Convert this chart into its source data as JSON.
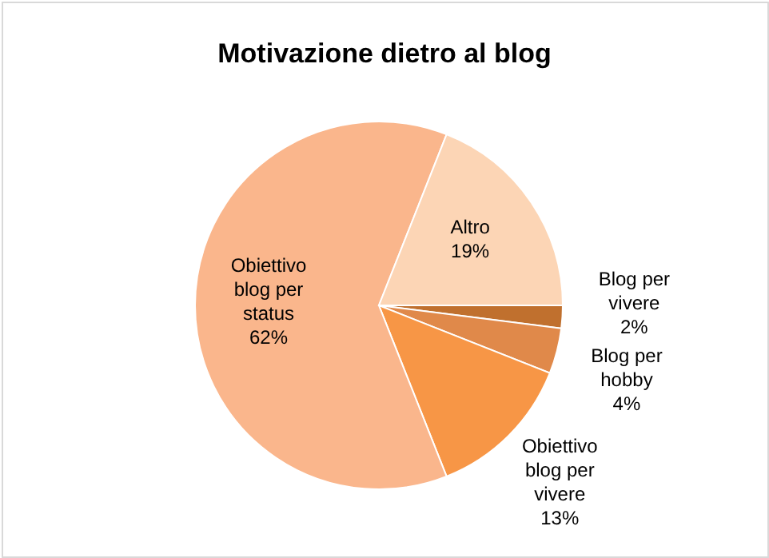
{
  "chart_data": {
    "type": "pie",
    "title": "Motivazione dietro al blog",
    "categories": [
      "Blog per vivere",
      "Blog per hobby",
      "Obiettivo blog per vivere",
      "Obiettivo blog per status",
      "Altro"
    ],
    "values": [
      2,
      4,
      13,
      62,
      19
    ],
    "value_labels": [
      "2%",
      "4%",
      "13%",
      "62%",
      "19%"
    ],
    "colors": [
      "#c0702e",
      "#e0894a",
      "#f79646",
      "#fab68c",
      "#fcd5b5"
    ]
  }
}
